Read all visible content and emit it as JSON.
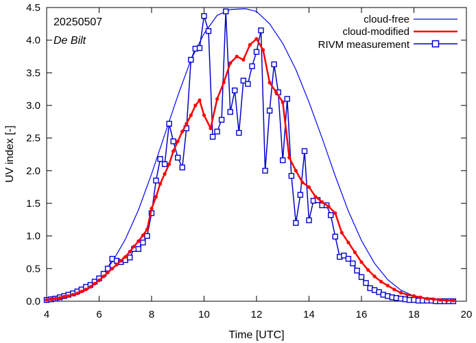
{
  "chart_data": {
    "type": "line",
    "title": "",
    "annotations": {
      "date": "20250507",
      "station": "De Bilt"
    },
    "xlabel": "Time  [UTC]",
    "ylabel": "UV index  [-]",
    "xlim": [
      4,
      20
    ],
    "ylim": [
      0,
      4.5
    ],
    "xticks": [
      4,
      6,
      8,
      10,
      12,
      14,
      16,
      18,
      20
    ],
    "yticks": [
      0.0,
      0.5,
      1.0,
      1.5,
      2.0,
      2.5,
      3.0,
      3.5,
      4.0,
      4.5
    ],
    "legend_position": "top-right",
    "series": [
      {
        "name": "cloud-free",
        "color": "#0000ff",
        "style": "thin-line",
        "peak": {
          "x": 11.6,
          "y": 4.48
        },
        "x": [
          4.0,
          4.5,
          5.0,
          5.5,
          6.0,
          6.5,
          7.0,
          7.5,
          8.0,
          8.5,
          9.0,
          9.5,
          10.0,
          10.5,
          11.0,
          11.5,
          11.6,
          12.0,
          12.5,
          13.0,
          13.5,
          14.0,
          14.5,
          15.0,
          15.5,
          16.0,
          16.5,
          17.0,
          17.5,
          18.0,
          18.5,
          19.0,
          19.5
        ],
        "y": [
          0.02,
          0.05,
          0.11,
          0.2,
          0.35,
          0.6,
          0.95,
          1.4,
          1.95,
          2.55,
          3.15,
          3.7,
          4.1,
          4.38,
          4.47,
          4.48,
          4.48,
          4.44,
          4.25,
          3.95,
          3.55,
          3.05,
          2.5,
          1.92,
          1.38,
          0.93,
          0.58,
          0.33,
          0.17,
          0.08,
          0.04,
          0.02,
          0.01
        ]
      },
      {
        "name": "cloud-modified",
        "color": "#ff0000",
        "style": "thick-line-dots",
        "x": [
          4.0,
          4.17,
          4.33,
          4.5,
          4.67,
          4.83,
          5.0,
          5.17,
          5.33,
          5.5,
          5.67,
          5.83,
          6.0,
          6.17,
          6.33,
          6.5,
          6.67,
          6.83,
          7.0,
          7.17,
          7.33,
          7.5,
          7.67,
          7.83,
          8.0,
          8.17,
          8.33,
          8.5,
          8.67,
          8.83,
          9.0,
          9.17,
          9.33,
          9.5,
          9.67,
          9.83,
          10.0,
          10.25,
          10.5,
          10.75,
          11.0,
          11.25,
          11.5,
          11.75,
          12.0,
          12.25,
          12.5,
          12.75,
          13.0,
          13.25,
          13.5,
          13.75,
          14.0,
          14.25,
          14.5,
          14.75,
          15.0,
          15.25,
          15.5,
          15.75,
          16.0,
          16.25,
          16.5,
          16.75,
          17.0,
          17.25,
          17.5,
          17.75,
          18.0,
          18.25,
          18.5,
          18.75,
          19.0,
          19.25,
          19.5
        ],
        "y": [
          0.02,
          0.03,
          0.04,
          0.05,
          0.07,
          0.08,
          0.1,
          0.12,
          0.15,
          0.18,
          0.22,
          0.27,
          0.32,
          0.38,
          0.44,
          0.5,
          0.56,
          0.62,
          0.68,
          0.76,
          0.84,
          0.92,
          1.01,
          1.1,
          1.42,
          1.6,
          1.8,
          1.95,
          2.1,
          2.3,
          2.45,
          2.6,
          2.72,
          2.85,
          3.0,
          3.08,
          2.85,
          2.65,
          3.1,
          3.35,
          3.65,
          3.75,
          3.7,
          3.93,
          4.02,
          3.85,
          3.35,
          3.2,
          3.05,
          2.2,
          2.0,
          1.82,
          1.75,
          1.6,
          1.52,
          1.45,
          1.35,
          1.05,
          0.9,
          0.75,
          0.6,
          0.48,
          0.38,
          0.3,
          0.24,
          0.18,
          0.13,
          0.1,
          0.08,
          0.06,
          0.04,
          0.03,
          0.02,
          0.01,
          0.01
        ]
      },
      {
        "name": "RIVM measurement",
        "color": "#0000cc",
        "style": "line-open-squares",
        "x": [
          4.0,
          4.17,
          4.33,
          4.5,
          4.67,
          4.83,
          5.0,
          5.17,
          5.33,
          5.5,
          5.67,
          5.83,
          6.0,
          6.17,
          6.33,
          6.5,
          6.67,
          6.83,
          7.0,
          7.17,
          7.33,
          7.5,
          7.67,
          7.83,
          8.0,
          8.17,
          8.33,
          8.5,
          8.67,
          8.83,
          9.0,
          9.17,
          9.33,
          9.5,
          9.67,
          9.83,
          10.0,
          10.17,
          10.33,
          10.5,
          10.67,
          10.83,
          11.0,
          11.17,
          11.33,
          11.5,
          11.67,
          11.83,
          12.0,
          12.17,
          12.33,
          12.5,
          12.67,
          12.83,
          13.0,
          13.17,
          13.33,
          13.5,
          13.67,
          13.83,
          14.0,
          14.17,
          14.33,
          14.5,
          14.67,
          14.83,
          15.0,
          15.17,
          15.33,
          15.5,
          15.67,
          15.83,
          16.0,
          16.17,
          16.33,
          16.5,
          16.67,
          16.83,
          17.0,
          17.17,
          17.33,
          17.5,
          17.67,
          17.83,
          18.0,
          18.17,
          18.33,
          18.5,
          18.67,
          18.83,
          19.0,
          19.17,
          19.33,
          19.5
        ],
        "y": [
          0.02,
          0.03,
          0.04,
          0.06,
          0.08,
          0.1,
          0.12,
          0.15,
          0.18,
          0.22,
          0.25,
          0.3,
          0.35,
          0.42,
          0.5,
          0.65,
          0.62,
          0.6,
          0.63,
          0.67,
          0.8,
          0.8,
          0.9,
          1.0,
          1.35,
          1.85,
          2.18,
          2.1,
          2.72,
          2.45,
          2.2,
          2.05,
          2.65,
          3.7,
          3.87,
          3.88,
          4.37,
          4.14,
          2.52,
          2.6,
          2.78,
          4.44,
          2.9,
          3.23,
          2.58,
          3.38,
          3.33,
          3.6,
          3.82,
          4.15,
          2.0,
          2.92,
          3.63,
          3.2,
          2.16,
          3.1,
          1.92,
          1.2,
          1.63,
          2.3,
          1.24,
          1.54,
          1.55,
          1.47,
          1.47,
          1.32,
          0.99,
          0.68,
          0.7,
          0.65,
          0.58,
          0.47,
          0.37,
          0.28,
          0.2,
          0.17,
          0.14,
          0.1,
          0.08,
          0.06,
          0.05,
          0.04,
          0.03,
          0.02,
          0.02,
          0.01,
          0.01,
          0.01,
          0.01,
          0.0,
          0.0,
          0.0,
          0.0,
          0.0
        ]
      }
    ]
  }
}
